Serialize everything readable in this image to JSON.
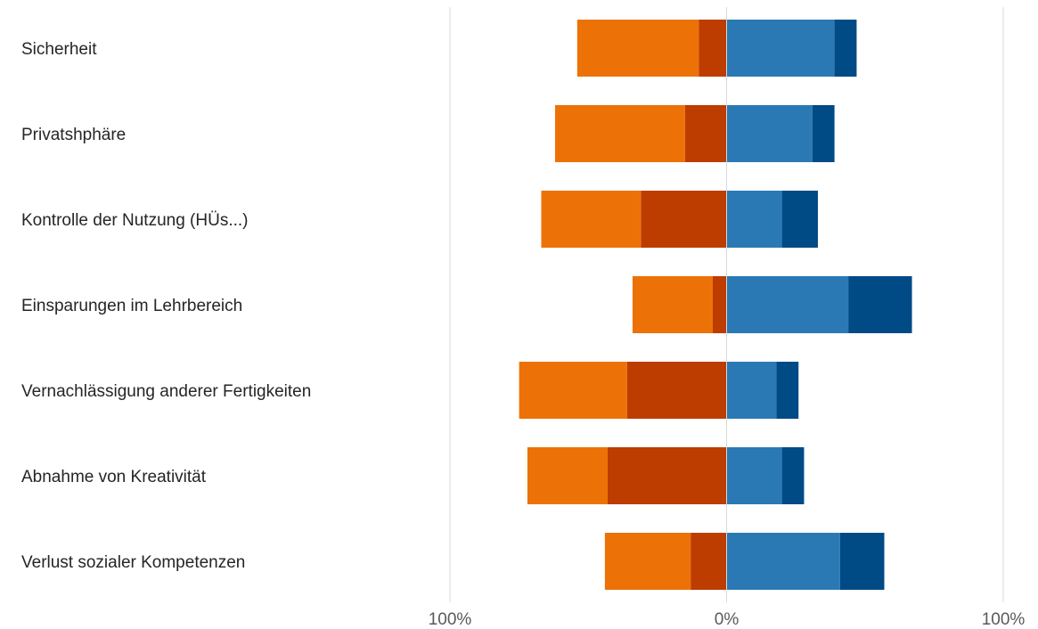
{
  "chart_data": {
    "type": "bar",
    "orientation": "horizontal",
    "stacking": "diverging",
    "categories": [
      "Sicherheit",
      "Privatshphäre",
      "Kontrolle der Nutzung (HÜs...)",
      "Einsparungen im Lehrbereich",
      "Vernachlässigung anderer Fertigkeiten",
      "Abnahme von Kreativität",
      "Verlust sozialer Kompetenzen"
    ],
    "series": [
      {
        "side": "negative",
        "color": "#BD3C00",
        "values": [
          10,
          15,
          31,
          5,
          36,
          43,
          13
        ]
      },
      {
        "side": "negative",
        "color": "#EC7208",
        "values": [
          44,
          47,
          36,
          29,
          39,
          29,
          31
        ]
      },
      {
        "side": "positive",
        "color": "#2B79B4",
        "values": [
          39,
          31,
          20,
          44,
          18,
          20,
          41
        ]
      },
      {
        "side": "positive",
        "color": "#004A86",
        "values": [
          8,
          8,
          13,
          23,
          8,
          8,
          16
        ]
      }
    ],
    "xlim": [
      -100,
      100
    ],
    "x_ticks": [
      "100%",
      "0%",
      "100%"
    ],
    "grid": true,
    "legend": "none"
  }
}
